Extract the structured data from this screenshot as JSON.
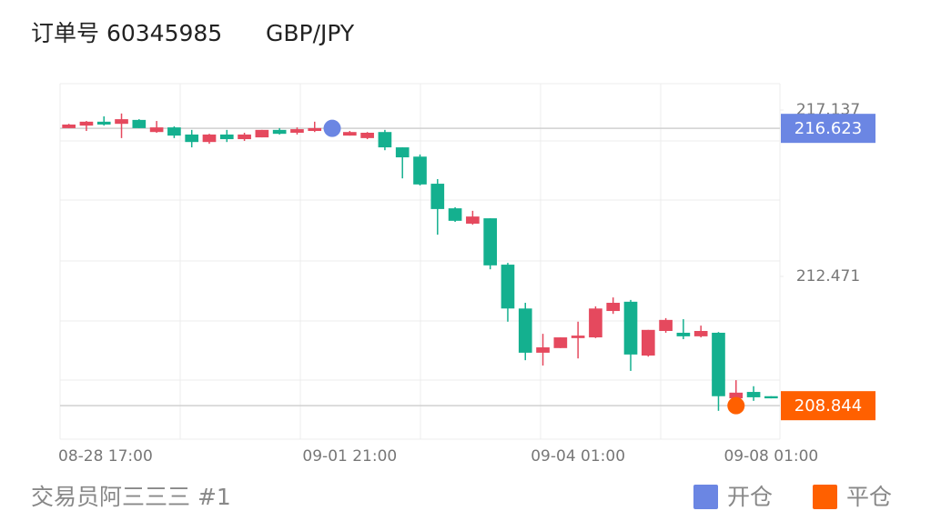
{
  "header": {
    "order": "订单号 60345985",
    "symbol": "GBP/JPY"
  },
  "chart_data": {
    "type": "candlestick",
    "categories": [
      "08-28 17:00",
      null,
      null,
      null,
      null,
      null,
      null,
      null,
      null,
      null,
      null,
      null,
      null,
      null,
      null,
      null,
      "09-01 21:00",
      null,
      null,
      null,
      null,
      null,
      null,
      null,
      null,
      null,
      null,
      null,
      null,
      "09-04 01:00",
      null,
      null,
      null,
      null,
      null,
      null,
      null,
      null,
      null,
      null,
      "09-08 01:00"
    ],
    "open": [
      216.63,
      216.7,
      216.81,
      216.75,
      216.86,
      216.52,
      216.65,
      216.45,
      216.24,
      216.45,
      216.32,
      216.37,
      216.58,
      216.5,
      216.55,
      216.6,
      216.42,
      216.35,
      216.52,
      216.09,
      215.83,
      215.07,
      214.38,
      213.95,
      214.1,
      212.8,
      211.57,
      210.33,
      210.46,
      210.74,
      210.76,
      211.5,
      211.76,
      210.25,
      210.94,
      210.89,
      210.79,
      210.89,
      209.05,
      209.23,
      209.11
    ],
    "high": [
      216.75,
      216.83,
      216.96,
      217.04,
      216.88,
      216.83,
      216.68,
      216.58,
      216.47,
      216.58,
      216.5,
      216.58,
      216.63,
      216.65,
      216.81,
      216.63,
      216.55,
      216.52,
      216.58,
      216.09,
      215.89,
      215.2,
      214.41,
      214.31,
      214.1,
      212.85,
      211.73,
      210.86,
      210.76,
      211.2,
      211.63,
      211.88,
      211.81,
      210.97,
      211.3,
      211.27,
      211.09,
      210.91,
      209.56,
      209.39,
      209.11
    ],
    "low": [
      216.63,
      216.55,
      216.7,
      216.35,
      216.63,
      216.5,
      216.35,
      216.09,
      216.19,
      216.24,
      216.27,
      216.37,
      216.45,
      216.45,
      216.52,
      216.5,
      216.42,
      216.32,
      216.01,
      215.22,
      215.02,
      213.64,
      214.0,
      213.92,
      212.67,
      211.2,
      210.12,
      209.97,
      210.46,
      210.17,
      210.74,
      211.42,
      209.82,
      210.22,
      210.89,
      210.71,
      210.76,
      208.7,
      208.98,
      208.98,
      209.05
    ],
    "close": [
      216.73,
      216.81,
      216.73,
      216.88,
      216.63,
      216.65,
      216.42,
      216.24,
      216.45,
      216.32,
      216.45,
      216.58,
      216.47,
      216.6,
      216.63,
      216.5,
      216.52,
      216.5,
      216.09,
      215.81,
      215.05,
      214.36,
      214.03,
      214.15,
      212.78,
      211.57,
      210.33,
      210.48,
      210.76,
      210.81,
      211.57,
      211.73,
      210.28,
      210.97,
      211.25,
      210.79,
      210.94,
      209.11,
      209.21,
      209.08,
      209.05
    ],
    "up_color": "#e5495e",
    "down_color": "#14b08f",
    "ylim": [
      207.905,
      217.877
    ],
    "yticks": [
      217.137,
      212.471
    ],
    "markers": [
      {
        "name": "开仓",
        "value": 216.623,
        "color": "#6b86e3",
        "index": 15
      },
      {
        "name": "平仓",
        "value": 208.844,
        "color": "#ff6000",
        "index": 38
      }
    ]
  },
  "footer": {
    "trader": "交易员阿三三三 #1"
  }
}
